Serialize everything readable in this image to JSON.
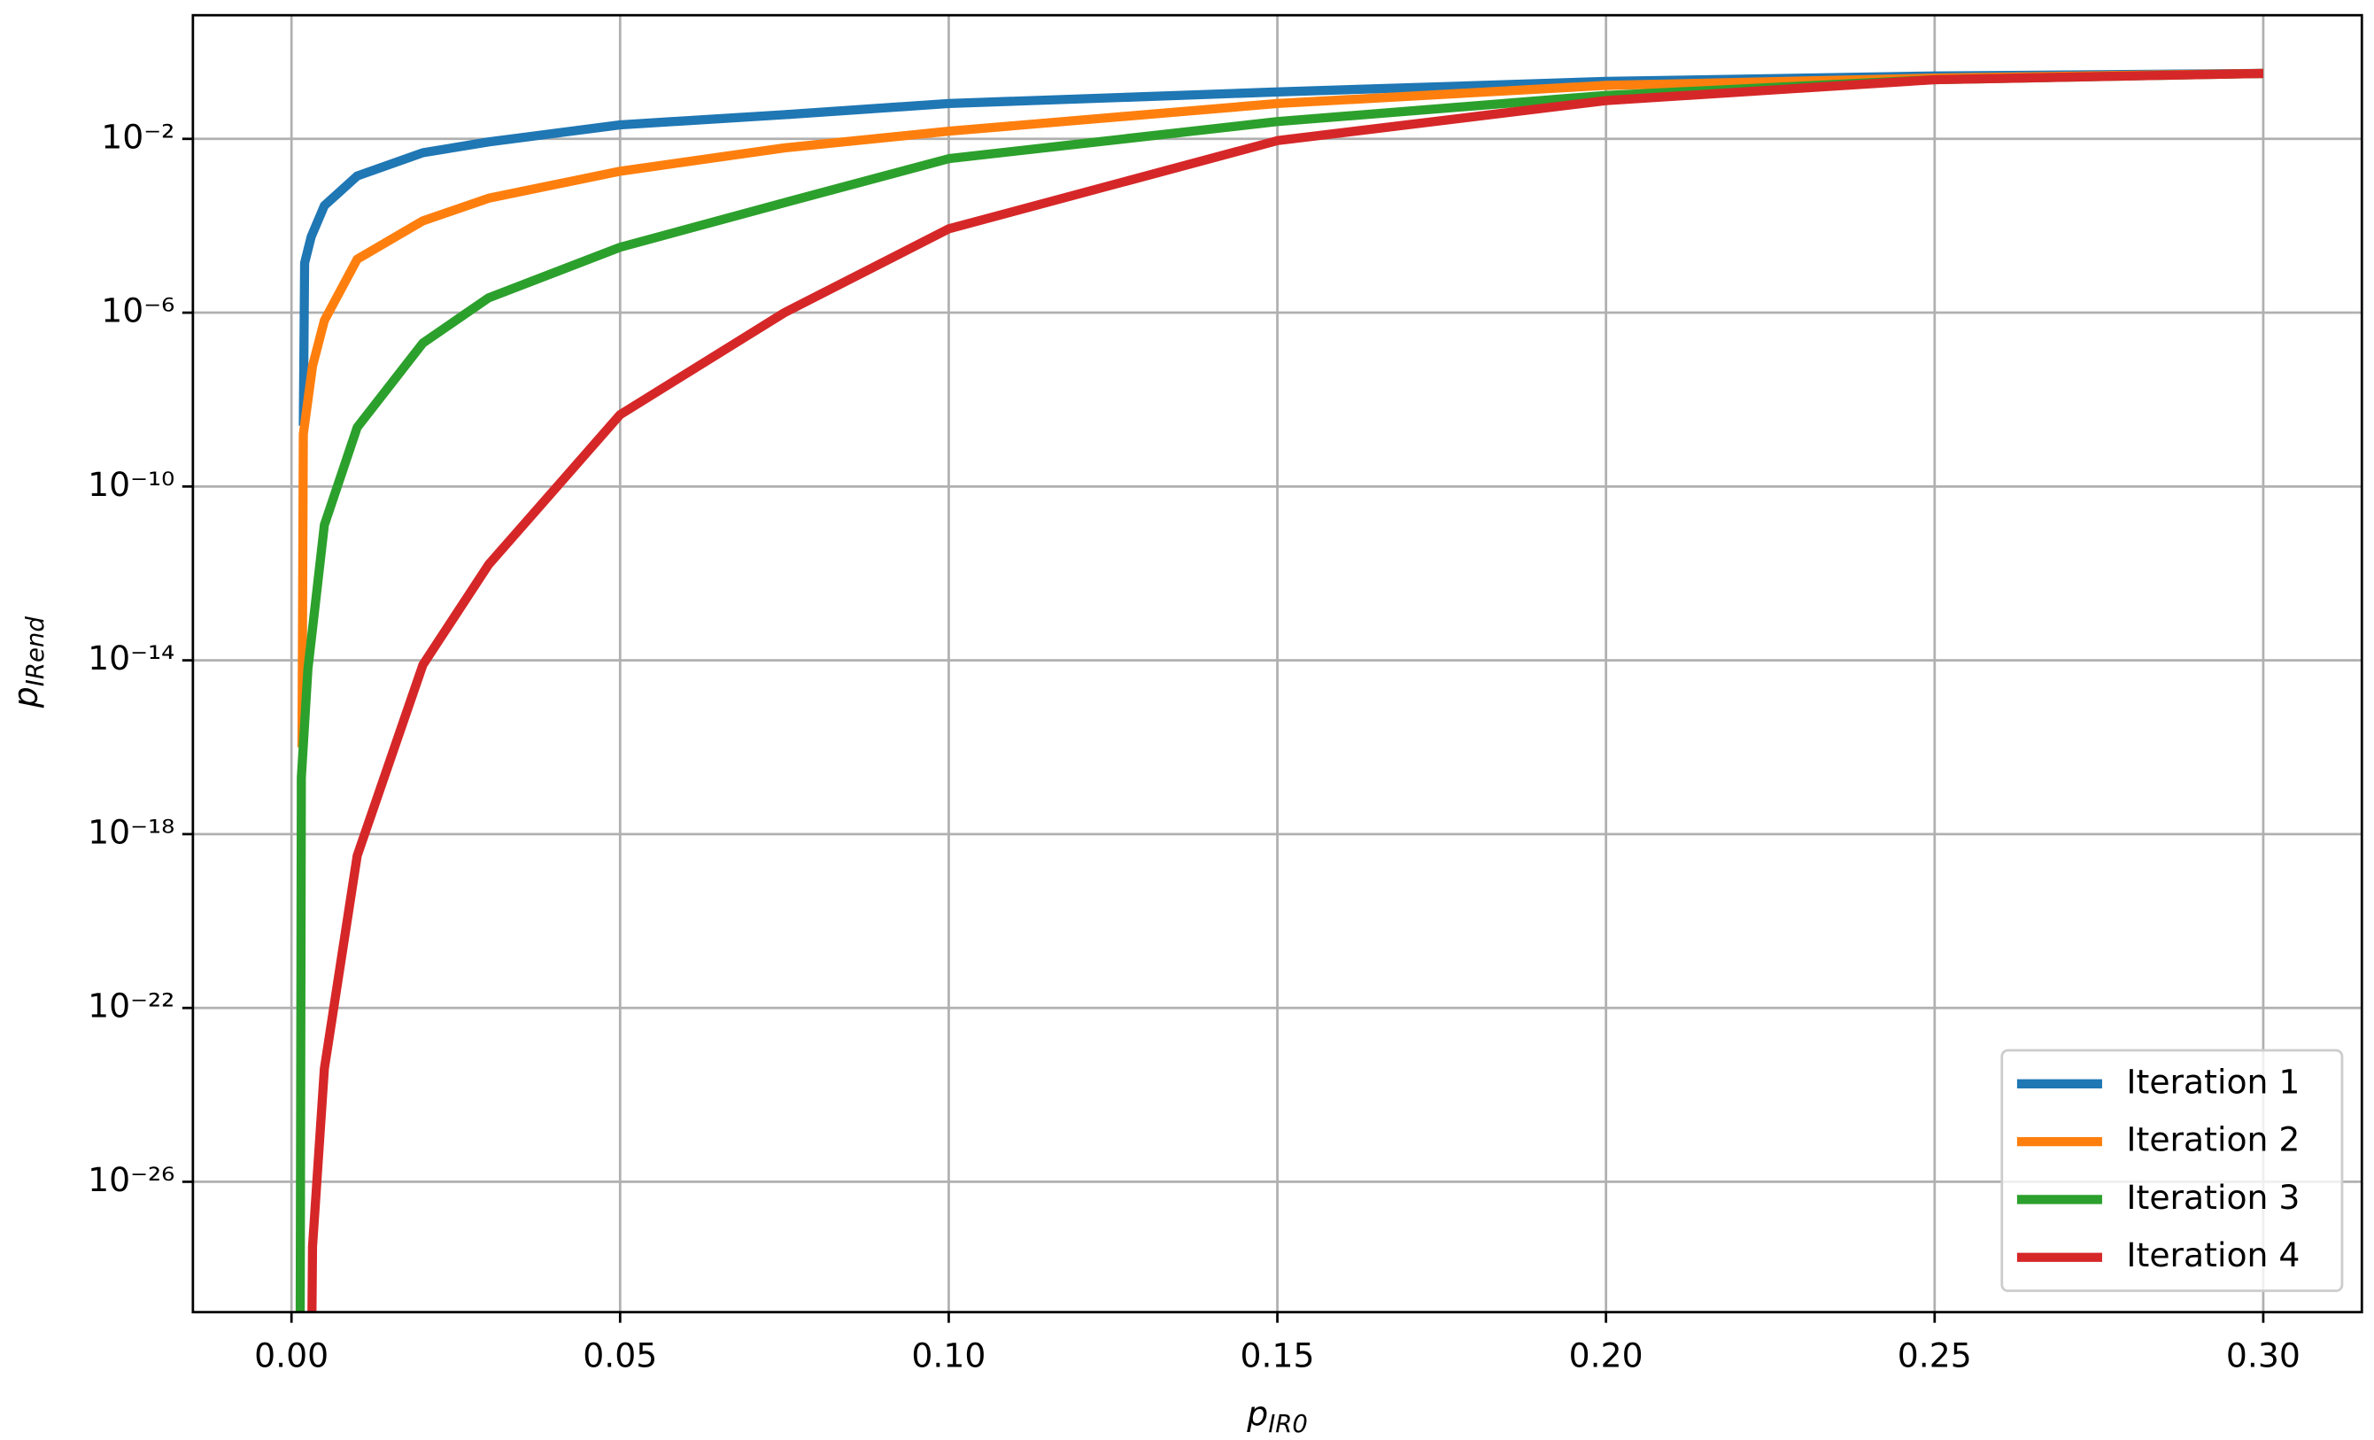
{
  "chart_data": {
    "type": "line",
    "xlabel": {
      "text": "p",
      "subscript": "IR0"
    },
    "ylabel": {
      "text": "p",
      "subscript": "IRend"
    },
    "xlim": [
      -0.015,
      0.315
    ],
    "xticks": [
      {
        "value": 0,
        "label": "0.00"
      },
      {
        "value": 0.05,
        "label": "0.05"
      },
      {
        "value": 0.1,
        "label": "0.10"
      },
      {
        "value": 0.15,
        "label": "0.15"
      },
      {
        "value": 0.2,
        "label": "0.20"
      },
      {
        "value": 0.25,
        "label": "0.25"
      },
      {
        "value": 0.3,
        "label": "0.30"
      }
    ],
    "ylim": [
      1e-29,
      7
    ],
    "yscale": "log",
    "yticks": [
      {
        "value": 0.01,
        "label": "10⁻²"
      },
      {
        "value": 1e-06,
        "label": "10⁻⁶"
      },
      {
        "value": 1e-10,
        "label": "10⁻¹⁰"
      },
      {
        "value": 1e-14,
        "label": "10⁻¹⁴"
      },
      {
        "value": 1e-18,
        "label": "10⁻¹⁸"
      },
      {
        "value": 1e-22,
        "label": "10⁻²²"
      },
      {
        "value": 1e-26,
        "label": "10⁻²⁶"
      }
    ],
    "grid": true,
    "legend": "lower right",
    "series": [
      {
        "name": "Iteration 1",
        "color": "#1f77b4",
        "x": [
          0.0018,
          0.002,
          0.003,
          0.005,
          0.01,
          0.02,
          0.03,
          0.05,
          0.075,
          0.1,
          0.15,
          0.2,
          0.25,
          0.3
        ],
        "values": [
          2.5e-09,
          1.4e-05,
          5.6e-05,
          0.00029,
          0.0014,
          0.0048,
          0.0085,
          0.021,
          0.036,
          0.065,
          0.12,
          0.21,
          0.28,
          0.32
        ]
      },
      {
        "name": "Iteration 2",
        "color": "#ff7f0e",
        "x": [
          0.0016,
          0.0018,
          0.0032,
          0.005,
          0.01,
          0.02,
          0.03,
          0.05,
          0.075,
          0.1,
          0.15,
          0.2,
          0.25,
          0.3
        ],
        "values": [
          1e-16,
          1.6e-09,
          5.9e-08,
          6.6e-07,
          1.7e-05,
          0.00013,
          0.00043,
          0.0018,
          0.0062,
          0.015,
          0.065,
          0.17,
          0.25,
          0.32
        ]
      },
      {
        "name": "Iteration 3",
        "color": "#2ca02c",
        "x": [
          0.0013,
          0.0015,
          0.0025,
          0.005,
          0.01,
          0.02,
          0.03,
          0.05,
          0.075,
          0.1,
          0.15,
          0.2,
          0.25,
          0.3
        ],
        "values": [
          1e-31,
          2e-17,
          6.3e-15,
          1.3e-11,
          2.3e-09,
          2e-07,
          2.2e-06,
          3.2e-05,
          0.00034,
          0.0035,
          0.025,
          0.1,
          0.23,
          0.32
        ]
      },
      {
        "name": "Iteration 4",
        "color": "#d62728",
        "x": [
          0.003,
          0.0032,
          0.005,
          0.01,
          0.02,
          0.03,
          0.05,
          0.075,
          0.1,
          0.15,
          0.2,
          0.25,
          0.3
        ],
        "values": [
          1e-31,
          3.2e-28,
          4e-24,
          3.2e-19,
          7.9e-15,
          1.6e-12,
          4.5e-09,
          1e-06,
          8.5e-05,
          0.0091,
          0.076,
          0.23,
          0.32
        ]
      }
    ]
  }
}
